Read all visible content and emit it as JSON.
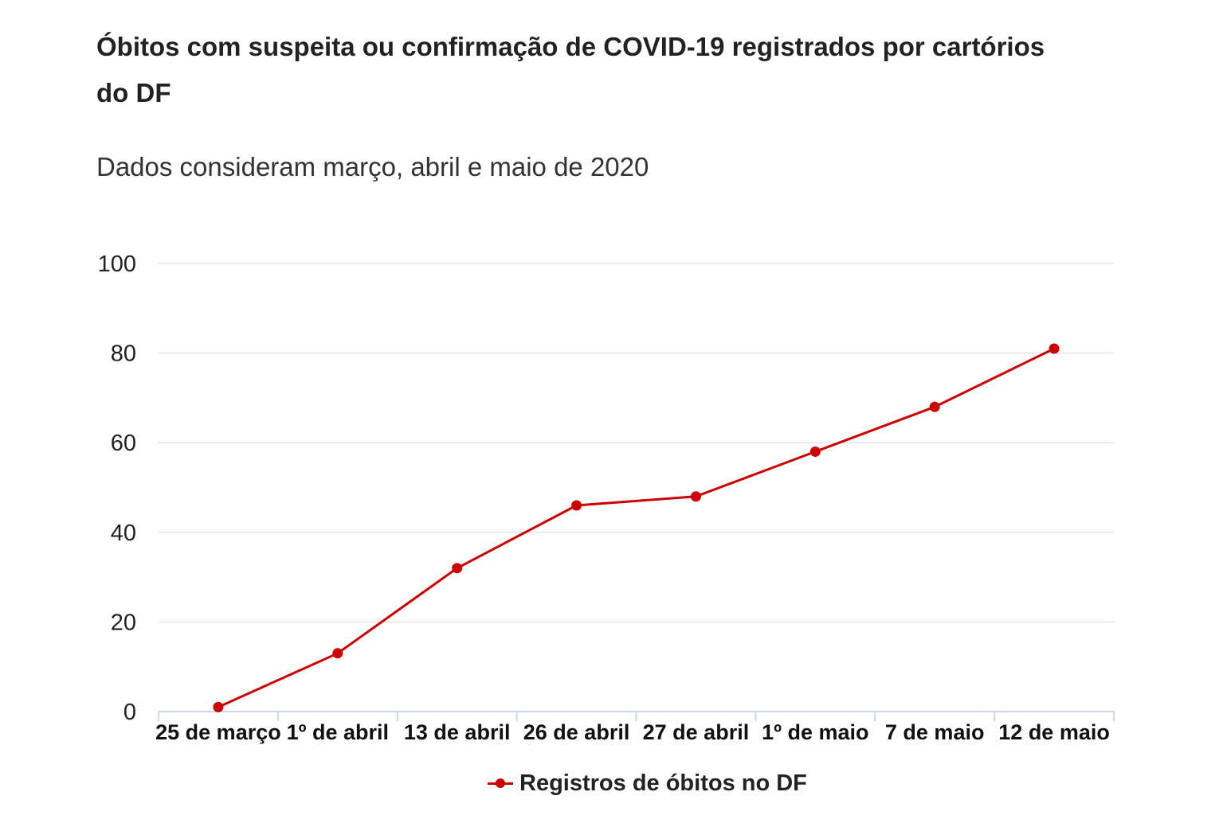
{
  "title": "Óbitos com suspeita ou confirmação de COVID-19 registrados por cartórios do DF",
  "subtitle": "Dados consideram março, abril e maio de 2020",
  "colors": {
    "series": "#cc0000",
    "grid": "#e6e6e6",
    "axis": "#ccd6eb"
  },
  "chart_data": {
    "type": "line",
    "categories": [
      "25 de março",
      "1º de abril",
      "13 de abril",
      "26 de abril",
      "27 de abril",
      "1º de maio",
      "7 de maio",
      "12 de maio"
    ],
    "series": [
      {
        "name": "Registros de óbitos no DF",
        "values": [
          1,
          13,
          32,
          46,
          48,
          58,
          68,
          81
        ]
      }
    ],
    "ylim": [
      0,
      100
    ],
    "yticks": [
      "0",
      "20",
      "40",
      "60",
      "80",
      "100"
    ],
    "grid": true,
    "legend": "bottom-center"
  }
}
